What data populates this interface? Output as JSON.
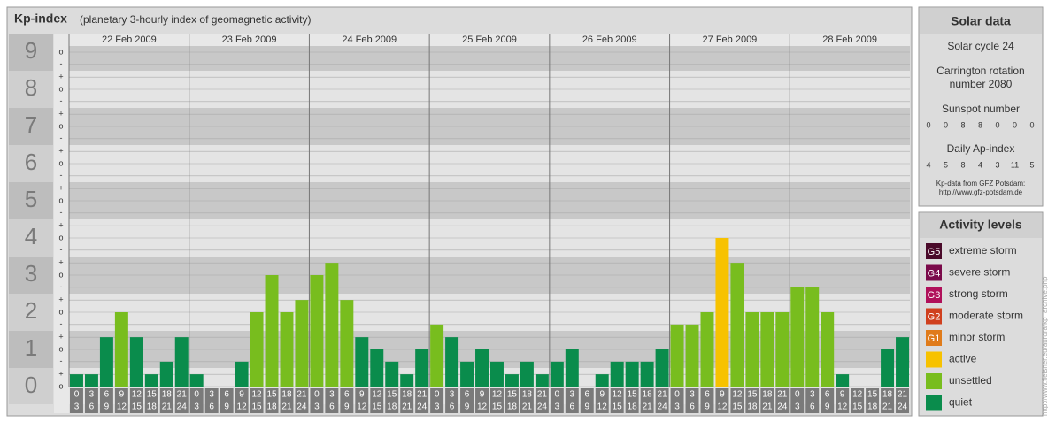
{
  "chart_data": {
    "type": "bar",
    "title": "Kp-index",
    "subtitle": "(planetary 3-hourly index of geomagnetic activity)",
    "days": [
      "22 Feb 2009",
      "23 Feb 2009",
      "24 Feb 2009",
      "25 Feb 2009",
      "26 Feb 2009",
      "27 Feb 2009",
      "28 Feb 2009"
    ],
    "hour_ranges": [
      [
        "0",
        "3"
      ],
      [
        "3",
        "6"
      ],
      [
        "6",
        "9"
      ],
      [
        "9",
        "12"
      ],
      [
        "12",
        "15"
      ],
      [
        "15",
        "18"
      ],
      [
        "18",
        "21"
      ],
      [
        "21",
        "24"
      ]
    ],
    "values": [
      0.33,
      0.33,
      1.33,
      2,
      1.33,
      0.33,
      0.67,
      1.33,
      0.33,
      0,
      0,
      0.67,
      2,
      3,
      2,
      2.33,
      3,
      3.33,
      2.33,
      1.33,
      1,
      0.67,
      0.33,
      1,
      1.67,
      1.33,
      0.67,
      1,
      0.67,
      0.33,
      0.67,
      0.33,
      0.67,
      1,
      0,
      0.33,
      0.67,
      0.67,
      0.67,
      1,
      1.67,
      1.67,
      2,
      4,
      3.33,
      2,
      2,
      2,
      2.67,
      2.67,
      2,
      0.33,
      0,
      0,
      1,
      1.33
    ],
    "colors": [
      "#0a8c4c",
      "#0a8c4c",
      "#0a8c4c",
      "#78bd1e",
      "#0a8c4c",
      "#0a8c4c",
      "#0a8c4c",
      "#0a8c4c",
      "#0a8c4c",
      "#0a8c4c",
      "#0a8c4c",
      "#0a8c4c",
      "#78bd1e",
      "#78bd1e",
      "#78bd1e",
      "#78bd1e",
      "#78bd1e",
      "#78bd1e",
      "#78bd1e",
      "#0a8c4c",
      "#0a8c4c",
      "#0a8c4c",
      "#0a8c4c",
      "#0a8c4c",
      "#78bd1e",
      "#0a8c4c",
      "#0a8c4c",
      "#0a8c4c",
      "#0a8c4c",
      "#0a8c4c",
      "#0a8c4c",
      "#0a8c4c",
      "#0a8c4c",
      "#0a8c4c",
      "#0a8c4c",
      "#0a8c4c",
      "#0a8c4c",
      "#0a8c4c",
      "#0a8c4c",
      "#0a8c4c",
      "#78bd1e",
      "#78bd1e",
      "#78bd1e",
      "#f7c200",
      "#78bd1e",
      "#78bd1e",
      "#78bd1e",
      "#78bd1e",
      "#78bd1e",
      "#78bd1e",
      "#78bd1e",
      "#0a8c4c",
      "#0a8c4c",
      "#0a8c4c",
      "#0a8c4c",
      "#0a8c4c"
    ],
    "ylim": [
      0,
      9.5
    ],
    "yticks": [
      0,
      1,
      2,
      3,
      4,
      5,
      6,
      7,
      8,
      9
    ],
    "minor_ticks": [
      {
        "value": 0,
        "label": "o"
      },
      {
        "value": 0.33,
        "label": "+"
      },
      {
        "value": 0.67,
        "label": "-"
      },
      {
        "value": 1,
        "label": "o"
      },
      {
        "value": 1.33,
        "label": "+"
      },
      {
        "value": 1.67,
        "label": "-"
      },
      {
        "value": 2,
        "label": "o"
      },
      {
        "value": 2.33,
        "label": "+"
      },
      {
        "value": 2.67,
        "label": "-"
      },
      {
        "value": 3,
        "label": "o"
      },
      {
        "value": 3.33,
        "label": "+"
      },
      {
        "value": 3.67,
        "label": "-"
      },
      {
        "value": 4,
        "label": "o"
      },
      {
        "value": 4.33,
        "label": "+"
      },
      {
        "value": 4.67,
        "label": "-"
      },
      {
        "value": 5,
        "label": "o"
      },
      {
        "value": 5.33,
        "label": "+"
      },
      {
        "value": 5.67,
        "label": "-"
      },
      {
        "value": 6,
        "label": "o"
      },
      {
        "value": 6.33,
        "label": "+"
      },
      {
        "value": 6.67,
        "label": "-"
      },
      {
        "value": 7,
        "label": "o"
      },
      {
        "value": 7.33,
        "label": "+"
      },
      {
        "value": 7.67,
        "label": "-"
      },
      {
        "value": 8,
        "label": "o"
      },
      {
        "value": 8.33,
        "label": "+"
      },
      {
        "value": 8.67,
        "label": "-"
      },
      {
        "value": 9,
        "label": "o"
      }
    ]
  },
  "solar_data": {
    "title": "Solar data",
    "cycle": "Solar cycle 24",
    "carrington": [
      "Carrington rotation",
      "number 2080"
    ],
    "sunspot_title": "Sunspot number",
    "sunspot": [
      0,
      0,
      8,
      8,
      0,
      0,
      0
    ],
    "ap_title": "Daily Ap-index",
    "ap": [
      4,
      5,
      8,
      4,
      3,
      11,
      5
    ],
    "source": [
      "Kp-data from GFZ Potsdam:",
      "http://www.gfz-potsdam.de"
    ]
  },
  "activity_levels": {
    "title": "Activity levels",
    "items": [
      {
        "badge": "G5",
        "label": "extreme storm",
        "color": "#4a0a2a"
      },
      {
        "badge": "G4",
        "label": "severe storm",
        "color": "#7a0a4a"
      },
      {
        "badge": "G3",
        "label": "strong storm",
        "color": "#b0105a"
      },
      {
        "badge": "G2",
        "label": "moderate storm",
        "color": "#d0401e"
      },
      {
        "badge": "G1",
        "label": "minor storm",
        "color": "#e07b1a"
      },
      {
        "label": "active",
        "color": "#f7c200"
      },
      {
        "label": "unsettled",
        "color": "#78bd1e"
      },
      {
        "label": "quiet",
        "color": "#0a8c4c"
      }
    ]
  },
  "credit": "http://www.fleisner.eu/aurora/kp_archive.php"
}
